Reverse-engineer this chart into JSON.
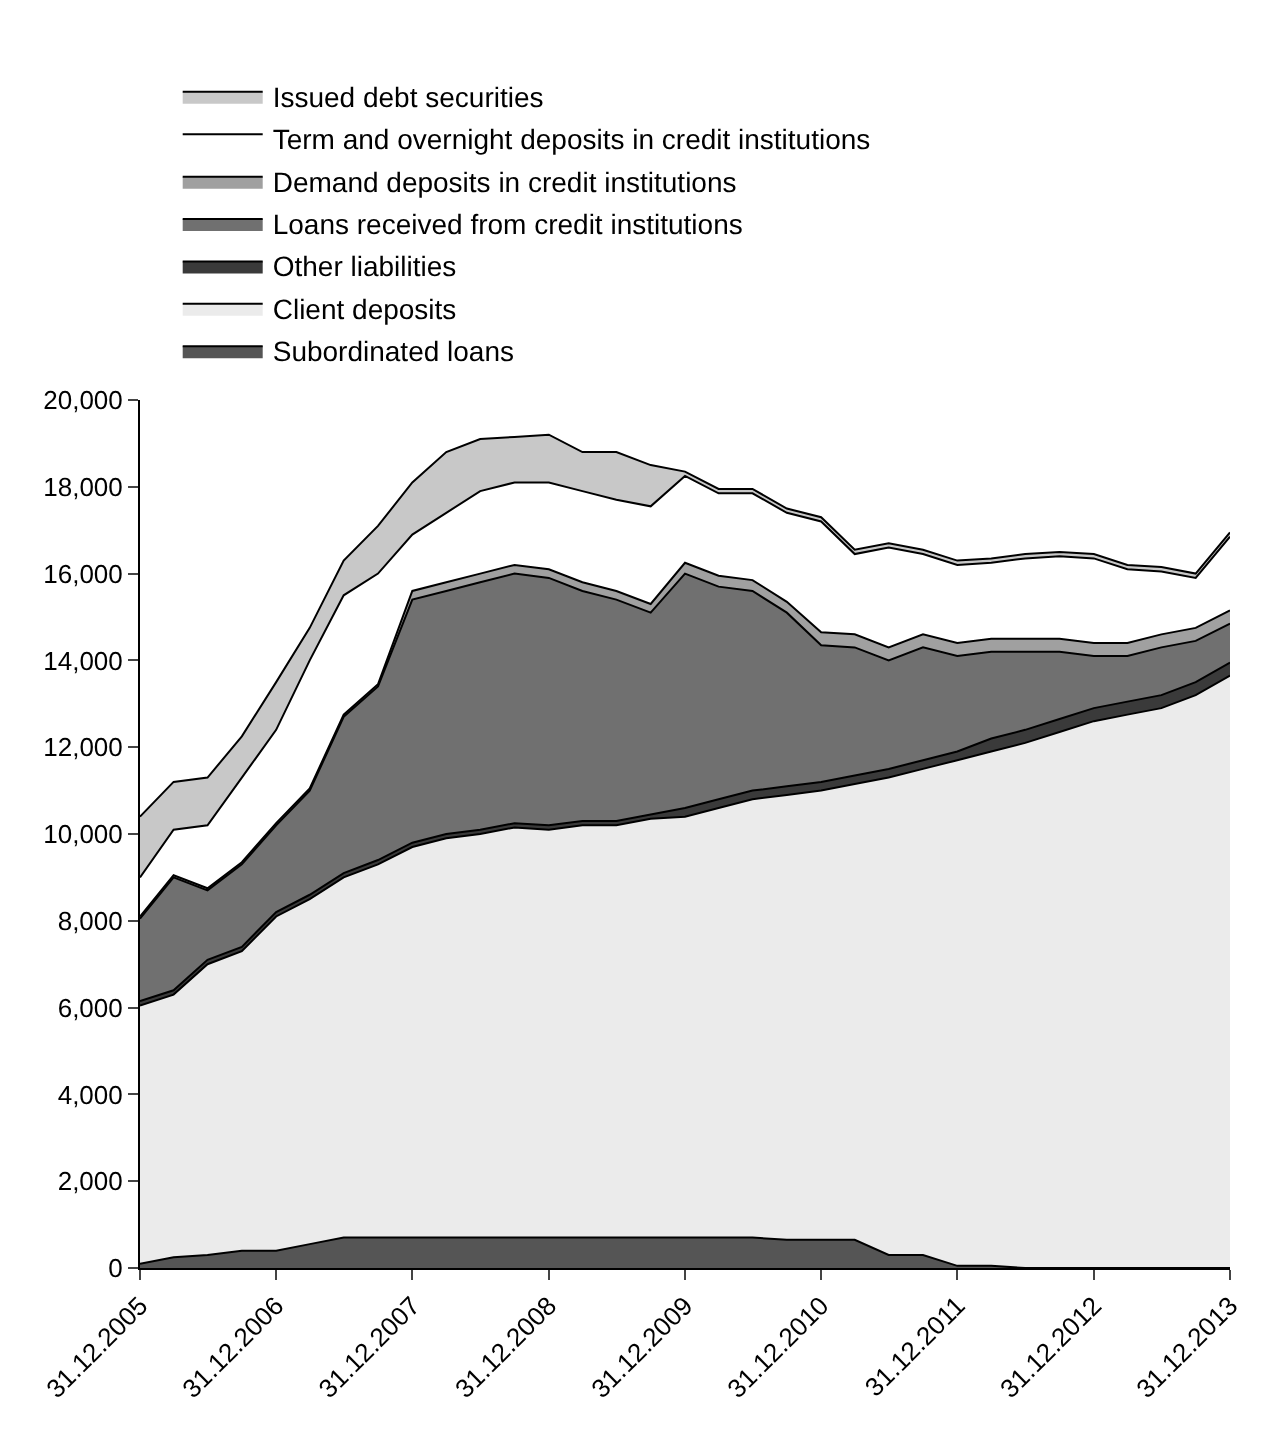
{
  "chart_data": {
    "type": "area",
    "stacked": true,
    "x": [
      "2005-12-31",
      "2006-03-31",
      "2006-06-30",
      "2006-09-30",
      "2006-12-31",
      "2007-03-31",
      "2007-06-30",
      "2007-09-30",
      "2007-12-31",
      "2008-03-31",
      "2008-06-30",
      "2008-09-30",
      "2008-12-31",
      "2009-03-31",
      "2009-06-30",
      "2009-09-30",
      "2009-12-31",
      "2010-03-31",
      "2010-06-30",
      "2010-09-30",
      "2010-12-31",
      "2011-03-31",
      "2011-06-30",
      "2011-09-30",
      "2011-12-31",
      "2012-03-31",
      "2012-06-30",
      "2012-09-30",
      "2012-12-31",
      "2013-03-31",
      "2013-06-30",
      "2013-09-30",
      "2013-12-31"
    ],
    "series": [
      {
        "name": "Subordinated loans",
        "color": "#555555",
        "values": [
          100,
          250,
          300,
          400,
          400,
          550,
          700,
          700,
          700,
          700,
          700,
          700,
          700,
          700,
          700,
          700,
          700,
          700,
          700,
          650,
          650,
          650,
          300,
          300,
          50,
          50,
          0,
          0,
          0,
          0,
          0,
          0,
          0
        ]
      },
      {
        "name": "Client deposits",
        "color": "#ebebeb",
        "values": [
          5950,
          6050,
          6700,
          6900,
          7700,
          7950,
          8300,
          8600,
          9000,
          9200,
          9300,
          9450,
          9400,
          9500,
          9500,
          9650,
          9700,
          9900,
          10100,
          10250,
          10350,
          10500,
          11000,
          11200,
          11650,
          11850,
          12100,
          12350,
          12600,
          12750,
          12900,
          13200,
          13650
        ]
      },
      {
        "name": "Other liabilities",
        "color": "#3a3a3a",
        "values": [
          100,
          100,
          100,
          100,
          100,
          100,
          100,
          100,
          100,
          100,
          100,
          100,
          100,
          100,
          100,
          100,
          200,
          200,
          200,
          200,
          200,
          200,
          200,
          200,
          200,
          300,
          300,
          300,
          300,
          300,
          300,
          300,
          300
        ]
      },
      {
        "name": "Loans received from credit institutions",
        "color": "#707070",
        "values": [
          1900,
          2600,
          1600,
          1900,
          2000,
          2400,
          3600,
          4000,
          5600,
          5600,
          5700,
          5750,
          5700,
          5300,
          5100,
          4650,
          5400,
          4900,
          4600,
          4000,
          3150,
          2950,
          2500,
          2600,
          2200,
          2000,
          1800,
          1550,
          1200,
          1050,
          1100,
          950,
          900
        ]
      },
      {
        "name": "Demand deposits in credit institutions",
        "color": "#a0a0a0",
        "values": [
          50,
          50,
          50,
          50,
          50,
          50,
          50,
          50,
          200,
          200,
          200,
          200,
          200,
          200,
          200,
          200,
          250,
          250,
          250,
          250,
          300,
          300,
          300,
          300,
          300,
          300,
          300,
          300,
          300,
          300,
          300,
          300,
          300
        ]
      },
      {
        "name": "Term and overnight deposits in credit institutions",
        "color": "#ffffff",
        "values": [
          900,
          1050,
          1450,
          1950,
          2150,
          2950,
          2750,
          2550,
          1300,
          1600,
          1900,
          1900,
          2000,
          2100,
          2100,
          2250,
          2000,
          1900,
          2000,
          2050,
          2550,
          1850,
          2300,
          1850,
          1800,
          1750,
          1850,
          1900,
          1950,
          1700,
          1450,
          1150,
          1700
        ]
      },
      {
        "name": "Issued debt securities",
        "color": "#c8c8c8",
        "values": [
          1400,
          1100,
          1100,
          950,
          1100,
          750,
          800,
          1100,
          1200,
          1400,
          1200,
          1050,
          1100,
          900,
          1100,
          950,
          100,
          100,
          100,
          100,
          100,
          100,
          100,
          100,
          100,
          100,
          100,
          100,
          100,
          100,
          100,
          100,
          100
        ]
      }
    ],
    "xlim": [
      "2005-12-31",
      "2013-12-31"
    ],
    "xticks": [
      {
        "value": "2005-12-31",
        "label": "31.12.2005"
      },
      {
        "value": "2006-12-31",
        "label": "31.12.2006"
      },
      {
        "value": "2007-12-31",
        "label": "31.12.2007"
      },
      {
        "value": "2008-12-31",
        "label": "31.12.2008"
      },
      {
        "value": "2009-12-31",
        "label": "31.12.2009"
      },
      {
        "value": "2010-12-31",
        "label": "31.12.2010"
      },
      {
        "value": "2011-12-31",
        "label": "31.12.2011"
      },
      {
        "value": "2012-12-31",
        "label": "31.12.2012"
      },
      {
        "value": "2013-12-31",
        "label": "31.12.2013"
      }
    ],
    "ylim": [
      0,
      20000
    ],
    "yticks": [
      0,
      {
        "value": 2000,
        "label": "2,000"
      },
      {
        "value": 4000,
        "label": "4,000"
      },
      {
        "value": 6000,
        "label": "6,000"
      },
      {
        "value": 8000,
        "label": "8,000"
      },
      {
        "value": 10000,
        "label": "10,000"
      },
      {
        "value": 12000,
        "label": "12,000"
      },
      {
        "value": 14000,
        "label": "14,000"
      },
      {
        "value": 16000,
        "label": "16,000"
      },
      {
        "value": 18000,
        "label": "18,000"
      },
      {
        "value": 20000,
        "label": "20,000"
      }
    ],
    "legend": "top"
  }
}
